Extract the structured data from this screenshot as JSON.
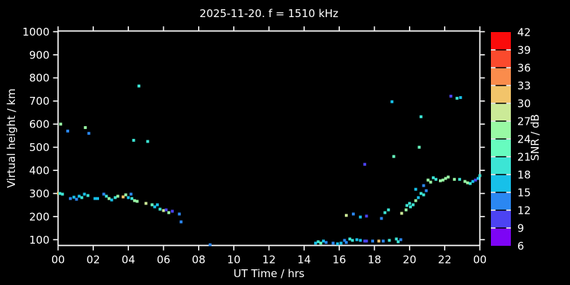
{
  "window": {
    "background": "#000000",
    "text_color": "#ffffff"
  },
  "chart_data": {
    "type": "scatter",
    "title": "2025-11-20. f = 1510 kHz",
    "xlabel": "UT Time / hrs",
    "ylabel": "Virtual height / km",
    "xlim": [
      0,
      24
    ],
    "ylim": [
      75,
      1003
    ],
    "grid": false,
    "legend_position": "none",
    "x_ticks": {
      "hours": [
        0,
        2,
        4,
        6,
        8,
        10,
        12,
        14,
        16,
        18,
        20,
        22,
        24
      ],
      "labels": [
        "00",
        "02",
        "04",
        "06",
        "08",
        "10",
        "12",
        "14",
        "16",
        "18",
        "20",
        "22",
        "00"
      ]
    },
    "y_ticks": [
      100,
      200,
      300,
      400,
      500,
      600,
      700,
      800,
      900,
      1000
    ],
    "colorbar": {
      "label": "SNR / dB",
      "min": 6,
      "max": 42,
      "step": 3,
      "tick_labels_top_to_bottom": [
        "42",
        "39",
        "36",
        "33",
        "30",
        "27",
        "24",
        "21",
        "18",
        "15",
        "12",
        "9",
        "6"
      ],
      "cell_colors_low_to_high": [
        "#7D05F5",
        "#4C43F2",
        "#2B87F2",
        "#17C0E9",
        "#3CE5D5",
        "#67FCBF",
        "#99F9A4",
        "#CBEA97",
        "#F2C46A",
        "#FA8C4C",
        "#FB4A2D",
        "#FA0B0B"
      ]
    },
    "point_units": [
      "ut_hours",
      "virtual_height_km",
      "snr_db"
    ],
    "points": [
      [
        0.15,
        600,
        25
      ],
      [
        0.55,
        570,
        13
      ],
      [
        1.55,
        585,
        25
      ],
      [
        1.75,
        560,
        13
      ],
      [
        4.3,
        530,
        19
      ],
      [
        5.1,
        525,
        19
      ],
      [
        4.6,
        765,
        19
      ],
      [
        0.02,
        300,
        31
      ],
      [
        0.1,
        300,
        19
      ],
      [
        0.25,
        297,
        19
      ],
      [
        0.7,
        278,
        13
      ],
      [
        0.9,
        284,
        16
      ],
      [
        1.05,
        275,
        13
      ],
      [
        1.2,
        288,
        16
      ],
      [
        1.35,
        282,
        19
      ],
      [
        1.5,
        297,
        16
      ],
      [
        1.7,
        291,
        19
      ],
      [
        2.1,
        278,
        16
      ],
      [
        2.25,
        278,
        16
      ],
      [
        2.6,
        297,
        13
      ],
      [
        2.75,
        288,
        19
      ],
      [
        2.9,
        278,
        25
      ],
      [
        3.05,
        272,
        16
      ],
      [
        3.25,
        282,
        19
      ],
      [
        3.4,
        288,
        25
      ],
      [
        3.7,
        285,
        31
      ],
      [
        3.85,
        294,
        25
      ],
      [
        4.0,
        282,
        16
      ],
      [
        4.15,
        297,
        13
      ],
      [
        4.2,
        278,
        19
      ],
      [
        4.35,
        269,
        25
      ],
      [
        4.5,
        266,
        25
      ],
      [
        5.0,
        257,
        28
      ],
      [
        5.35,
        251,
        22
      ],
      [
        5.5,
        242,
        16
      ],
      [
        5.65,
        251,
        16
      ],
      [
        5.8,
        232,
        19
      ],
      [
        6.0,
        226,
        28
      ],
      [
        6.15,
        229,
        10
      ],
      [
        6.3,
        217,
        25
      ],
      [
        6.5,
        223,
        10
      ],
      [
        6.9,
        211,
        13
      ],
      [
        7.0,
        177,
        13
      ],
      [
        8.65,
        78,
        13
      ],
      [
        14.65,
        85,
        16
      ],
      [
        14.8,
        91,
        19
      ],
      [
        14.95,
        85,
        22
      ],
      [
        15.1,
        94,
        16
      ],
      [
        15.25,
        88,
        13
      ],
      [
        15.65,
        85,
        13
      ],
      [
        15.9,
        82,
        16
      ],
      [
        16.1,
        85,
        16
      ],
      [
        16.3,
        97,
        13
      ],
      [
        16.4,
        88,
        13
      ],
      [
        16.6,
        103,
        19
      ],
      [
        16.75,
        97,
        19
      ],
      [
        17.0,
        100,
        16
      ],
      [
        17.2,
        97,
        16
      ],
      [
        17.45,
        94,
        10
      ],
      [
        17.55,
        94,
        10
      ],
      [
        17.9,
        94,
        13
      ],
      [
        18.25,
        94,
        31
      ],
      [
        18.5,
        94,
        13
      ],
      [
        18.85,
        97,
        19
      ],
      [
        19.25,
        103,
        19
      ],
      [
        19.35,
        91,
        19
      ],
      [
        19.5,
        100,
        13
      ],
      [
        16.4,
        205,
        28
      ],
      [
        16.8,
        211,
        13
      ],
      [
        17.2,
        198,
        16
      ],
      [
        17.55,
        202,
        10
      ],
      [
        18.4,
        192,
        13
      ],
      [
        18.6,
        217,
        19
      ],
      [
        18.8,
        229,
        19
      ],
      [
        19.55,
        214,
        28
      ],
      [
        19.85,
        248,
        19
      ],
      [
        20.0,
        257,
        19
      ],
      [
        19.8,
        229,
        25
      ],
      [
        20.05,
        242,
        19
      ],
      [
        20.2,
        251,
        19
      ],
      [
        20.35,
        269,
        25
      ],
      [
        20.35,
        318,
        16
      ],
      [
        20.5,
        282,
        16
      ],
      [
        20.65,
        300,
        19
      ],
      [
        20.8,
        294,
        19
      ],
      [
        20.8,
        334,
        13
      ],
      [
        20.95,
        312,
        13
      ],
      [
        21.05,
        358,
        25
      ],
      [
        21.2,
        349,
        25
      ],
      [
        21.35,
        368,
        19
      ],
      [
        21.5,
        361,
        19
      ],
      [
        21.75,
        355,
        25
      ],
      [
        21.9,
        358,
        25
      ],
      [
        22.05,
        365,
        25
      ],
      [
        22.2,
        371,
        25
      ],
      [
        22.55,
        361,
        25
      ],
      [
        22.85,
        361,
        19
      ],
      [
        23.15,
        352,
        25
      ],
      [
        23.3,
        346,
        25
      ],
      [
        23.45,
        343,
        19
      ],
      [
        23.6,
        352,
        16
      ],
      [
        23.75,
        358,
        10
      ],
      [
        23.9,
        365,
        16
      ],
      [
        24.0,
        377,
        19
      ],
      [
        17.45,
        426,
        10
      ],
      [
        19.1,
        460,
        22
      ],
      [
        19.0,
        697,
        16
      ],
      [
        20.55,
        500,
        22
      ],
      [
        20.65,
        632,
        19
      ],
      [
        22.35,
        721,
        10
      ],
      [
        22.7,
        712,
        19
      ],
      [
        22.9,
        715,
        16
      ]
    ]
  }
}
